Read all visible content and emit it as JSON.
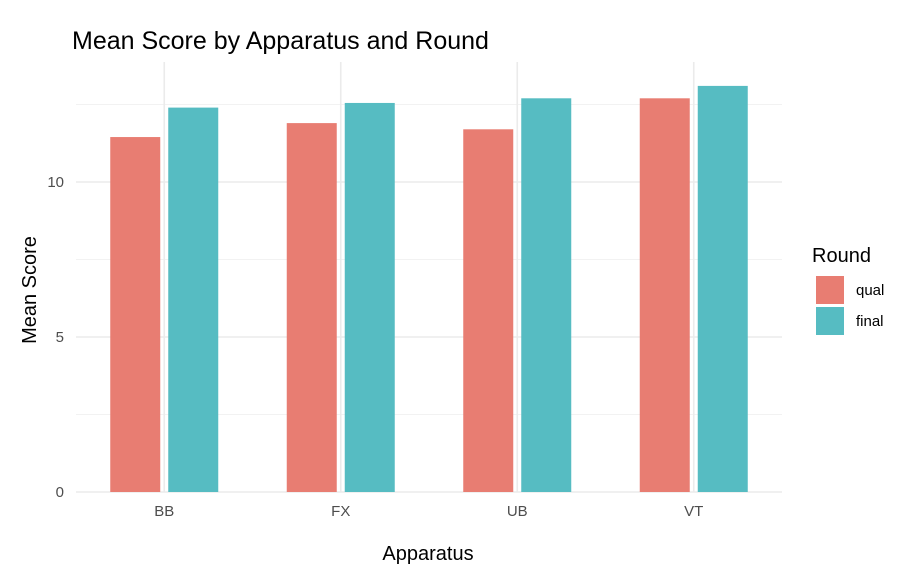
{
  "chart_data": {
    "type": "bar",
    "title": "Mean Score by Apparatus and Round",
    "xlabel": "Apparatus",
    "ylabel": "Mean Score",
    "categories": [
      "BB",
      "FX",
      "UB",
      "VT"
    ],
    "series": [
      {
        "name": "qual",
        "color": "#E87D72",
        "values": [
          11.45,
          11.9,
          11.7,
          12.7
        ]
      },
      {
        "name": "final",
        "color": "#56BCC2",
        "values": [
          12.4,
          12.55,
          12.7,
          13.1
        ]
      }
    ],
    "ylim": [
      0,
      13.1
    ],
    "yticks": [
      0,
      5,
      10
    ],
    "grid": true,
    "legend": {
      "title": "Round",
      "position": "right"
    }
  }
}
